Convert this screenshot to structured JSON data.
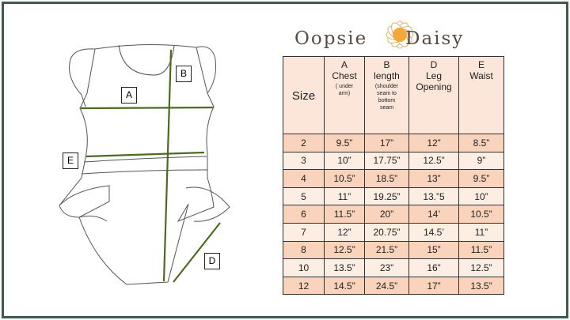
{
  "brand": {
    "logo_left": "Oopsie",
    "logo_right": "Daisy"
  },
  "diagram": {
    "labels": {
      "a": "A",
      "b": "B",
      "d": "D",
      "e": "E"
    },
    "arrow_color": "#4b6a22"
  },
  "table": {
    "headers": [
      {
        "letter": "",
        "name": "Size",
        "note": ""
      },
      {
        "letter": "A",
        "name": "Chest",
        "note": "( under arm)"
      },
      {
        "letter": "B",
        "name": "length",
        "note": "(shoulder seam to bottom seam"
      },
      {
        "letter": "D",
        "name": "Leg Opening",
        "note": ""
      },
      {
        "letter": "E",
        "name": "Waist",
        "note": ""
      }
    ],
    "rows": [
      [
        "2",
        "9.5”",
        "17”",
        "12”",
        "8.5”"
      ],
      [
        "3",
        "10”",
        "17.75”",
        "12.5”",
        "9”"
      ],
      [
        "4",
        "10.5”",
        "18.5”",
        "13”",
        "9.5”"
      ],
      [
        "5",
        "11”",
        "19.25”",
        "13.”5",
        "10”"
      ],
      [
        "6",
        "11.5”",
        "20”",
        "14’",
        "10.5”"
      ],
      [
        "7",
        "12”",
        "20.75”",
        "14.5’",
        "11”"
      ],
      [
        "8",
        "12.5”",
        "21.5”",
        "15”",
        "11.5”"
      ],
      [
        "10",
        "13.5”",
        "23”",
        "16”",
        "12.5”"
      ],
      [
        "12",
        "14.5”",
        "24.5”",
        "17”",
        "13.5”"
      ]
    ],
    "colors": {
      "header": "#fce6da",
      "row_dark": "#f9d3bc",
      "row_light": "#fdeee4"
    }
  }
}
